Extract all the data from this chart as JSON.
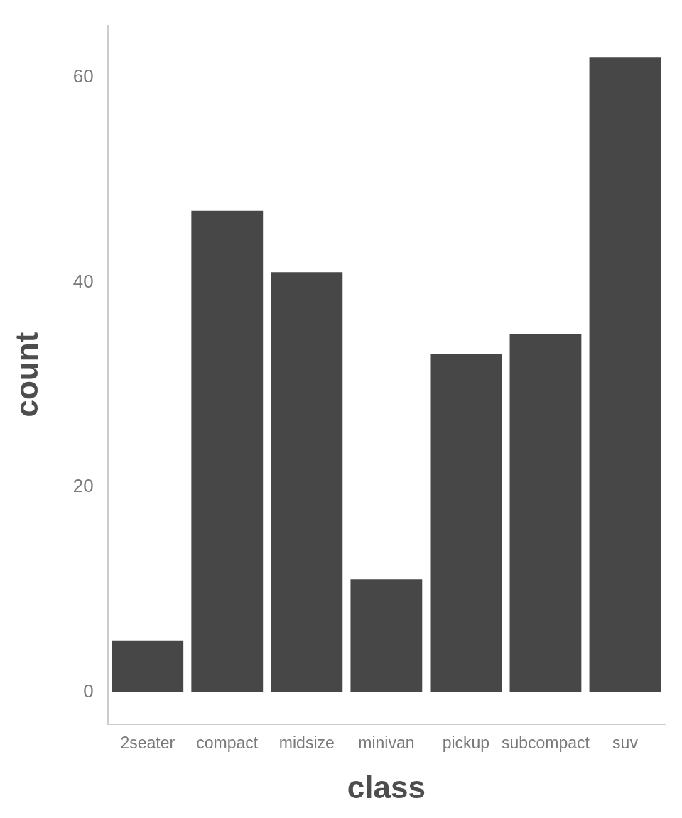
{
  "chart_data": {
    "type": "bar",
    "xlabel": "class",
    "ylabel": "count",
    "categories": [
      "2seater",
      "compact",
      "midsize",
      "minivan",
      "pickup",
      "subcompact",
      "suv"
    ],
    "values": [
      5,
      47,
      41,
      11,
      33,
      35,
      62
    ],
    "color": "#474747",
    "ylim": [
      -3.1,
      65.1
    ],
    "yticks": [
      0,
      20,
      40,
      60
    ],
    "grid": false,
    "legend": false
  }
}
